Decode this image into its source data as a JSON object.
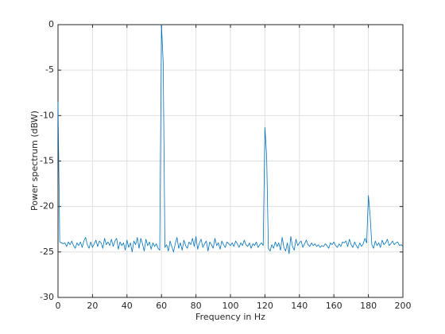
{
  "chart_data": {
    "type": "line",
    "xlabel": "Frequency in Hz",
    "ylabel": "Power spectrum (dBW)",
    "color": "#0072bd",
    "grid": true,
    "xlim": [
      0,
      200
    ],
    "xticks": [
      0,
      20,
      40,
      60,
      80,
      100,
      120,
      140,
      160,
      180,
      200
    ],
    "ylim": [
      -30,
      0
    ],
    "yticks": [
      -30,
      -25,
      -20,
      -15,
      -10,
      -5,
      0
    ],
    "x": [
      0,
      1,
      2,
      3,
      4,
      5,
      6,
      7,
      8,
      9,
      10,
      11,
      12,
      13,
      14,
      15,
      16,
      17,
      18,
      19,
      20,
      21,
      22,
      23,
      24,
      25,
      26,
      27,
      28,
      29,
      30,
      31,
      32,
      33,
      34,
      35,
      36,
      37,
      38,
      39,
      40,
      41,
      42,
      43,
      44,
      45,
      46,
      47,
      48,
      49,
      50,
      51,
      52,
      53,
      54,
      55,
      56,
      57,
      58,
      59,
      60,
      61,
      62,
      63,
      64,
      65,
      66,
      67,
      68,
      69,
      70,
      71,
      72,
      73,
      74,
      75,
      76,
      77,
      78,
      79,
      80,
      81,
      82,
      83,
      84,
      85,
      86,
      87,
      88,
      89,
      90,
      91,
      92,
      93,
      94,
      95,
      96,
      97,
      98,
      99,
      100,
      101,
      102,
      103,
      104,
      105,
      106,
      107,
      108,
      109,
      110,
      111,
      112,
      113,
      114,
      115,
      116,
      117,
      118,
      119,
      120,
      121,
      122,
      123,
      124,
      125,
      126,
      127,
      128,
      129,
      130,
      131,
      132,
      133,
      134,
      135,
      136,
      137,
      138,
      139,
      140,
      141,
      142,
      143,
      144,
      145,
      146,
      147,
      148,
      149,
      150,
      151,
      152,
      153,
      154,
      155,
      156,
      157,
      158,
      159,
      160,
      161,
      162,
      163,
      164,
      165,
      166,
      167,
      168,
      169,
      170,
      171,
      172,
      173,
      174,
      175,
      176,
      177,
      178,
      179,
      180,
      181,
      182,
      183,
      184,
      185,
      186,
      187,
      188,
      189,
      190,
      191,
      192,
      193,
      194,
      195,
      196,
      197,
      198,
      199,
      200
    ],
    "values": [
      -8.5,
      -23.9,
      -24.0,
      -24.1,
      -24.0,
      -24.4,
      -23.9,
      -24.2,
      -23.8,
      -24.3,
      -24.6,
      -24.0,
      -24.3,
      -23.9,
      -24.5,
      -23.8,
      -23.4,
      -24.2,
      -24.6,
      -23.9,
      -24.5,
      -24.1,
      -23.7,
      -24.4,
      -23.8,
      -24.0,
      -24.6,
      -23.5,
      -24.2,
      -23.9,
      -24.3,
      -23.6,
      -24.4,
      -23.8,
      -23.5,
      -24.7,
      -23.9,
      -24.3,
      -24.0,
      -24.8,
      -23.7,
      -24.5,
      -24.0,
      -25.0,
      -23.8,
      -24.2,
      -23.4,
      -24.6,
      -23.5,
      -24.1,
      -24.9,
      -23.6,
      -24.3,
      -23.9,
      -24.7,
      -24.0,
      -24.4,
      -24.1,
      -24.6,
      -24.8,
      0,
      -4.2,
      -24.5,
      -24.2,
      -24.9,
      -23.8,
      -24.4,
      -25.0,
      -24.1,
      -23.4,
      -24.6,
      -24.0,
      -24.8,
      -23.7,
      -24.3,
      -24.6,
      -23.9,
      -24.2,
      -23.5,
      -24.4,
      -23.3,
      -24.7,
      -24.0,
      -23.6,
      -24.5,
      -24.1,
      -23.8,
      -24.9,
      -23.9,
      -24.2,
      -24.6,
      -23.5,
      -24.3,
      -24.0,
      -24.7,
      -23.8,
      -24.2,
      -24.5,
      -23.9,
      -24.1,
      -24.3,
      -24.0,
      -24.4,
      -23.8,
      -24.1,
      -24.5,
      -24.0,
      -24.3,
      -23.7,
      -24.2,
      -24.4,
      -24.0,
      -24.6,
      -24.1,
      -24.3,
      -23.9,
      -24.5,
      -24.2,
      -24.0,
      -24.3,
      -11.3,
      -14.5,
      -24.6,
      -24.9,
      -24.2,
      -24.6,
      -23.9,
      -24.4,
      -24.0,
      -24.8,
      -23.4,
      -24.5,
      -24.9,
      -24.0,
      -25.2,
      -23.3,
      -24.4,
      -24.8,
      -23.6,
      -24.3,
      -24.0,
      -23.8,
      -24.5,
      -24.1,
      -23.7,
      -24.2,
      -24.4,
      -24.0,
      -24.3,
      -24.1,
      -24.4,
      -24.2,
      -24.5,
      -24.3,
      -24.4,
      -24.1,
      -24.3,
      -24.6,
      -24.0,
      -24.2,
      -23.9,
      -24.3,
      -24.5,
      -24.1,
      -24.4,
      -23.9,
      -24.0,
      -23.8,
      -24.4,
      -23.6,
      -24.2,
      -24.5,
      -23.9,
      -24.3,
      -24.6,
      -24.0,
      -24.4,
      -24.1,
      -23.5,
      -24.0,
      -18.8,
      -21.0,
      -24.2,
      -24.6,
      -23.8,
      -24.3,
      -24.0,
      -24.5,
      -23.7,
      -24.2,
      -24.0,
      -23.6,
      -24.3,
      -24.1,
      -23.8,
      -24.2,
      -24.0,
      -23.9,
      -24.3,
      -24.2,
      -24.4
    ]
  }
}
